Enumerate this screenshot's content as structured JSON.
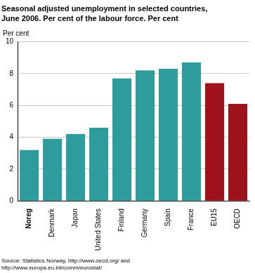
{
  "chart_data": {
    "type": "bar",
    "title": [
      "Seasonal adjusted unemployment in selected countries,",
      "June 2006. Per cent of the labour force. Per cent"
    ],
    "y_label": "Per cent",
    "source": [
      "Source: Statistics Norway, http://www.oecd.org/ and",
      "http://www.europa.eu.int/comm/eurostat/"
    ],
    "categories": [
      "Noreg",
      "Denmark",
      "Japan",
      "United States",
      "Finland",
      "Germany",
      "Spain",
      "France",
      "EU15",
      "OECD"
    ],
    "values": [
      3.2,
      3.9,
      4.2,
      4.6,
      7.7,
      8.2,
      8.3,
      8.7,
      7.4,
      6.1
    ],
    "colors": [
      "#2e9c9c",
      "#2e9c9c",
      "#2e9c9c",
      "#2e9c9c",
      "#2e9c9c",
      "#2e9c9c",
      "#2e9c9c",
      "#2e9c9c",
      "#9e1219",
      "#9e1219"
    ],
    "ylim": [
      0,
      10
    ],
    "yticks": [
      0,
      2,
      4,
      6,
      8,
      10
    ],
    "grid": true
  }
}
